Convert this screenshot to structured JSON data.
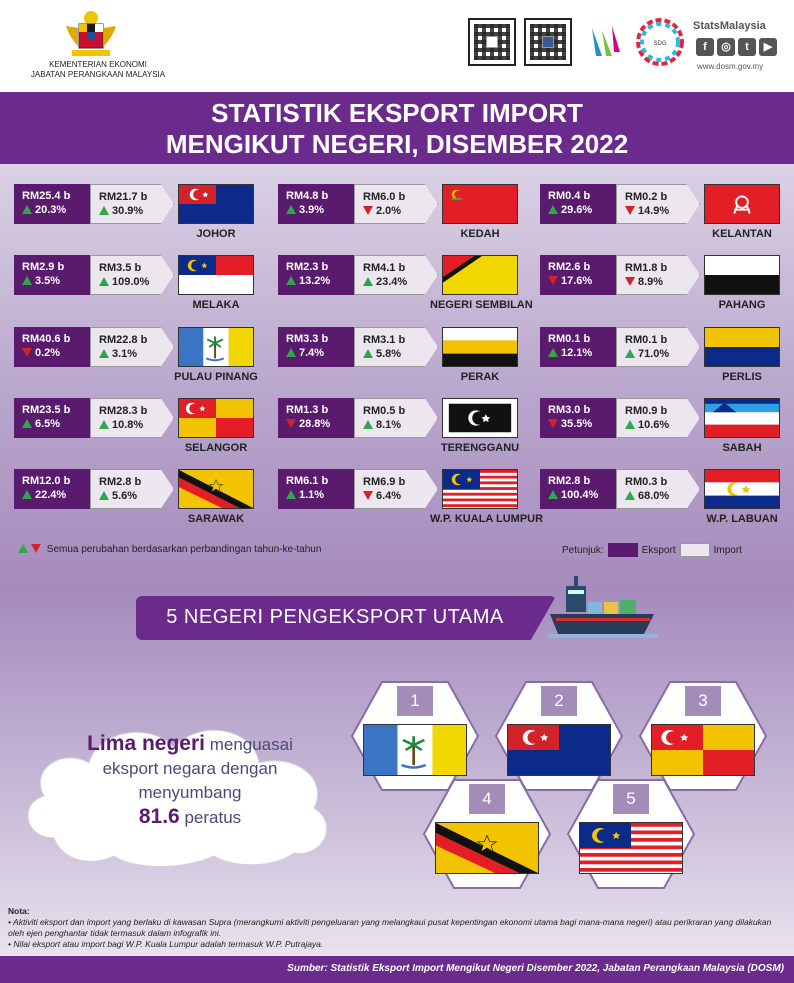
{
  "header": {
    "ministry_line1": "KEMENTERIAN EKONOMI",
    "ministry_line2": "JABATAN PERANGKAAN MALAYSIA",
    "brand": "StatsMalaysia",
    "website": "www.dosm.gov.my",
    "social_icons": [
      "facebook-icon",
      "instagram-icon",
      "twitter-icon",
      "youtube-icon"
    ]
  },
  "title": {
    "line1": "STATISTIK EKSPORT IMPORT",
    "line2": "MENGIKUT NEGERI, DISEMBER 2022"
  },
  "states": [
    {
      "name": "JOHOR",
      "export": "RM25.4 b",
      "export_chg": "20.3%",
      "export_dir": "up",
      "import": "RM21.7 b",
      "import_chg": "30.9%",
      "import_dir": "up"
    },
    {
      "name": "KEDAH",
      "export": "RM4.8 b",
      "export_chg": "3.9%",
      "export_dir": "up",
      "import": "RM6.0 b",
      "import_chg": "2.0%",
      "import_dir": "down"
    },
    {
      "name": "KELANTAN",
      "export": "RM0.4 b",
      "export_chg": "29.6%",
      "export_dir": "up",
      "import": "RM0.2 b",
      "import_chg": "14.9%",
      "import_dir": "down"
    },
    {
      "name": "MELAKA",
      "export": "RM2.9 b",
      "export_chg": "3.5%",
      "export_dir": "up",
      "import": "RM3.5 b",
      "import_chg": "109.0%",
      "import_dir": "up"
    },
    {
      "name": "NEGERI SEMBILAN",
      "export": "RM2.3 b",
      "export_chg": "13.2%",
      "export_dir": "up",
      "import": "RM4.1 b",
      "import_chg": "23.4%",
      "import_dir": "up"
    },
    {
      "name": "PAHANG",
      "export": "RM2.6 b",
      "export_chg": "17.6%",
      "export_dir": "down",
      "import": "RM1.8 b",
      "import_chg": "8.9%",
      "import_dir": "down"
    },
    {
      "name": "PULAU PINANG",
      "export": "RM40.6 b",
      "export_chg": "0.2%",
      "export_dir": "down",
      "import": "RM22.8 b",
      "import_chg": "3.1%",
      "import_dir": "up"
    },
    {
      "name": "PERAK",
      "export": "RM3.3 b",
      "export_chg": "7.4%",
      "export_dir": "up",
      "import": "RM3.1 b",
      "import_chg": "5.8%",
      "import_dir": "up"
    },
    {
      "name": "PERLIS",
      "export": "RM0.1 b",
      "export_chg": "12.1%",
      "export_dir": "up",
      "import": "RM0.1 b",
      "import_chg": "71.0%",
      "import_dir": "up"
    },
    {
      "name": "SELANGOR",
      "export": "RM23.5 b",
      "export_chg": "6.5%",
      "export_dir": "up",
      "import": "RM28.3 b",
      "import_chg": "10.8%",
      "import_dir": "up"
    },
    {
      "name": "TERENGGANU",
      "export": "RM1.3 b",
      "export_chg": "28.8%",
      "export_dir": "down",
      "import": "RM0.5 b",
      "import_chg": "8.1%",
      "import_dir": "up"
    },
    {
      "name": "SABAH",
      "export": "RM3.0 b",
      "export_chg": "35.5%",
      "export_dir": "down",
      "import": "RM0.9 b",
      "import_chg": "10.6%",
      "import_dir": "up"
    },
    {
      "name": "SARAWAK",
      "export": "RM12.0 b",
      "export_chg": "22.4%",
      "export_dir": "up",
      "import": "RM2.8 b",
      "import_chg": "5.6%",
      "import_dir": "up"
    },
    {
      "name": "W.P. KUALA LUMPUR",
      "export": "RM6.1 b",
      "export_chg": "1.1%",
      "export_dir": "up",
      "import": "RM6.9 b",
      "import_chg": "6.4%",
      "import_dir": "down"
    },
    {
      "name": "W.P. LABUAN",
      "export": "RM2.8 b",
      "export_chg": "100.4%",
      "export_dir": "up",
      "import": "RM0.3 b",
      "import_chg": "68.0%",
      "import_dir": "up"
    }
  ],
  "note_line": "Semua perubahan berdasarkan perbandingan tahun-ke-tahun",
  "legend": {
    "label": "Petunjuk:",
    "export": "Eksport",
    "import": "Import",
    "export_color": "#5a1a6e",
    "import_color": "#ece7ee"
  },
  "banner": "5 NEGERI PENGEKSPORT UTAMA",
  "cloud": {
    "bold": "Lima negeri",
    "text1": " menguasai",
    "text2": "eksport negara dengan",
    "text3": "menyumbang",
    "value": "81.6",
    "unit": " peratus"
  },
  "top5": [
    {
      "rank": "1",
      "flag": "pulau-pinang"
    },
    {
      "rank": "2",
      "flag": "johor"
    },
    {
      "rank": "3",
      "flag": "selangor"
    },
    {
      "rank": "4",
      "flag": "sarawak"
    },
    {
      "rank": "5",
      "flag": "kuala-lumpur"
    }
  ],
  "footnote": {
    "label": "Nota:",
    "item1": "Aktiviti eksport dan import yang berlaku di kawasan Supra (merangkumi aktiviti pengeluaran yang melangkaui pusat kepentingan ekonomi utama bagi mana-mana negeri) atau perikraran yang dilakukan oleh ejen penghantar tidak termasuk dalam infografik ini.",
    "item2": "Nilai eksport atau import bagi W.P. Kuala Lumpur adalah termasuk W.P. Putrajaya."
  },
  "source": "Sumber: Statistik Eksport Import Mengikut Negeri Disember 2022, Jabatan Perangkaan Malaysia (DOSM)",
  "colors": {
    "purple": "#6b2b8c",
    "dark_purple": "#5a1a6e",
    "up": "#2ea84a",
    "down": "#d3232a"
  }
}
